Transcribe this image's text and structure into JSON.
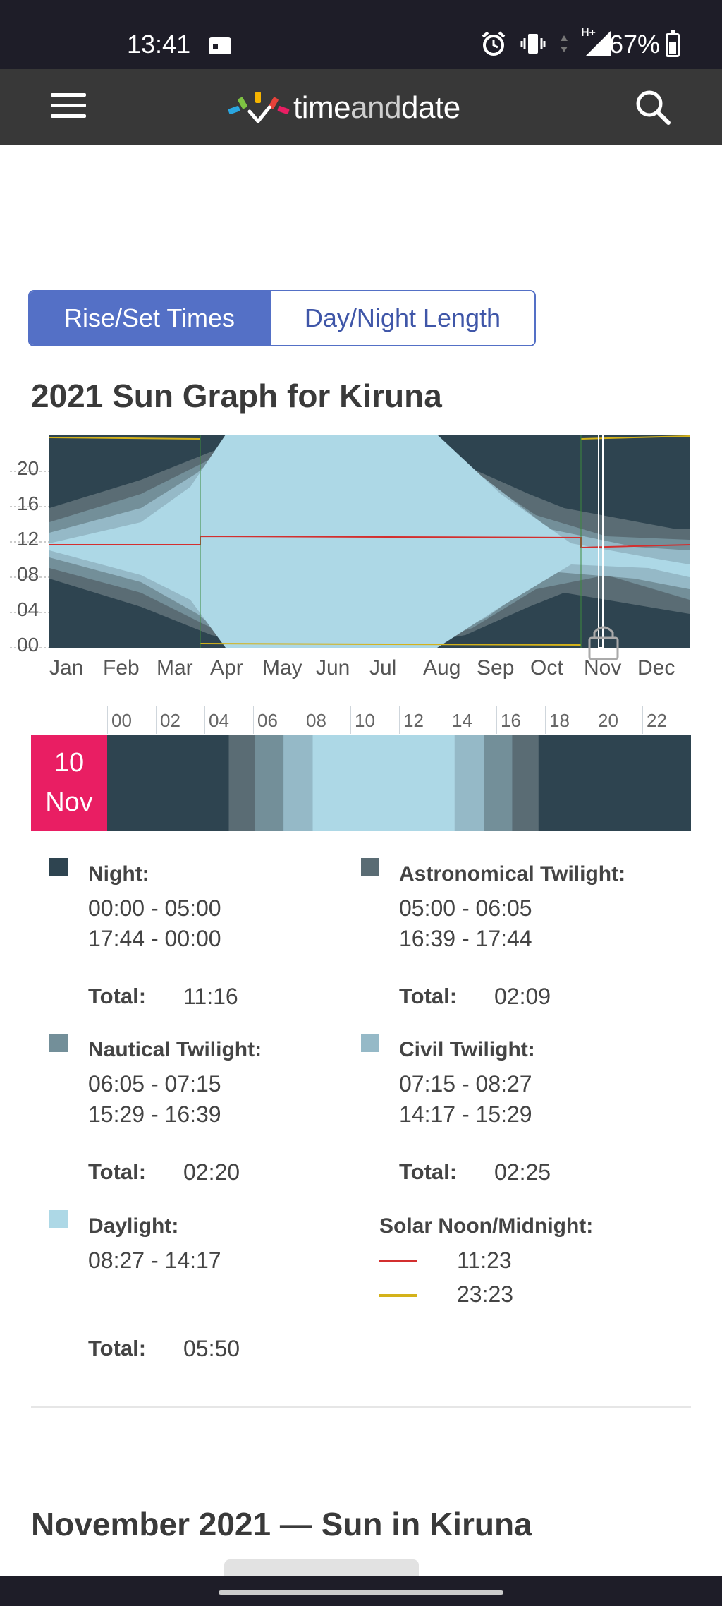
{
  "status_bar": {
    "time": "13:41",
    "battery": "67%",
    "icons": [
      "alarm-icon",
      "vibrate-icon",
      "data-arrows-icon",
      "signal-icon",
      "battery-icon"
    ],
    "network_label": "H+"
  },
  "header": {
    "brand": {
      "part1": "time",
      "part2": "and",
      "part3": "date"
    },
    "icons": [
      "menu-icon",
      "search-icon"
    ]
  },
  "tabs": [
    {
      "label": "Rise/Set Times",
      "active": true
    },
    {
      "label": "Day/Night Length",
      "active": false
    }
  ],
  "graph_title": "2021 Sun Graph for Kiruna",
  "chart_data": {
    "type": "area",
    "y_ticks": [
      "00",
      "04",
      "08",
      "12",
      "16",
      "20"
    ],
    "x_ticks": [
      "Jan",
      "Feb",
      "Mar",
      "Apr",
      "May",
      "Jun",
      "Jul",
      "Aug",
      "Sep",
      "Oct",
      "Nov",
      "Dec"
    ],
    "ylim": [
      0,
      24
    ],
    "selected_date": "Nov 10",
    "series": [
      {
        "name": "Night",
        "color": "#2e4450"
      },
      {
        "name": "Astronomical Twilight",
        "color": "#5a6c74"
      },
      {
        "name": "Nautical Twilight",
        "color": "#738f99"
      },
      {
        "name": "Civil Twilight",
        "color": "#95b9c7"
      },
      {
        "name": "Daylight",
        "color": "#add8e6"
      }
    ]
  },
  "day_bar": {
    "date_day": "10",
    "date_month": "Nov",
    "hours": [
      "00",
      "02",
      "04",
      "06",
      "08",
      "10",
      "12",
      "14",
      "16",
      "18",
      "20",
      "22"
    ],
    "segments": [
      {
        "start": 0.0,
        "end": 5.0,
        "color": "#2e4450"
      },
      {
        "start": 5.0,
        "end": 6.083,
        "color": "#5a6c74"
      },
      {
        "start": 6.083,
        "end": 7.25,
        "color": "#738f99"
      },
      {
        "start": 7.25,
        "end": 8.45,
        "color": "#95b9c7"
      },
      {
        "start": 8.45,
        "end": 14.283,
        "color": "#add8e6"
      },
      {
        "start": 14.283,
        "end": 15.483,
        "color": "#95b9c7"
      },
      {
        "start": 15.483,
        "end": 16.65,
        "color": "#738f99"
      },
      {
        "start": 16.65,
        "end": 17.733,
        "color": "#5a6c74"
      },
      {
        "start": 17.733,
        "end": 24.0,
        "color": "#2e4450"
      }
    ]
  },
  "legend": {
    "night": {
      "title": "Night:",
      "lines": [
        "00:00 - 05:00",
        "17:44 - 00:00"
      ],
      "total_label": "Total:",
      "total": "11:16",
      "color": "#2e4450"
    },
    "astronomical": {
      "title": "Astronomical Twilight:",
      "lines": [
        "05:00 - 06:05",
        "16:39 - 17:44"
      ],
      "total_label": "Total:",
      "total": "02:09",
      "color": "#5a6c74"
    },
    "nautical": {
      "title": "Nautical Twilight:",
      "lines": [
        "06:05 - 07:15",
        "15:29 - 16:39"
      ],
      "total_label": "Total:",
      "total": "02:20",
      "color": "#738f99"
    },
    "civil": {
      "title": "Civil Twilight:",
      "lines": [
        "07:15 - 08:27",
        "14:17 - 15:29"
      ],
      "total_label": "Total:",
      "total": "02:25",
      "color": "#95b9c7"
    },
    "daylight": {
      "title": "Daylight:",
      "lines": [
        "08:27 - 14:17"
      ],
      "total_label": "Total:",
      "total": "05:50",
      "color": "#add8e6"
    },
    "solar": {
      "title": "Solar Noon/Midnight:",
      "noon": "11:23",
      "midnight": "23:23",
      "noon_color": "#d32f2f",
      "midnight_color": "#d4b21a"
    }
  },
  "next_section_title": "November 2021 — Sun in Kiruna"
}
